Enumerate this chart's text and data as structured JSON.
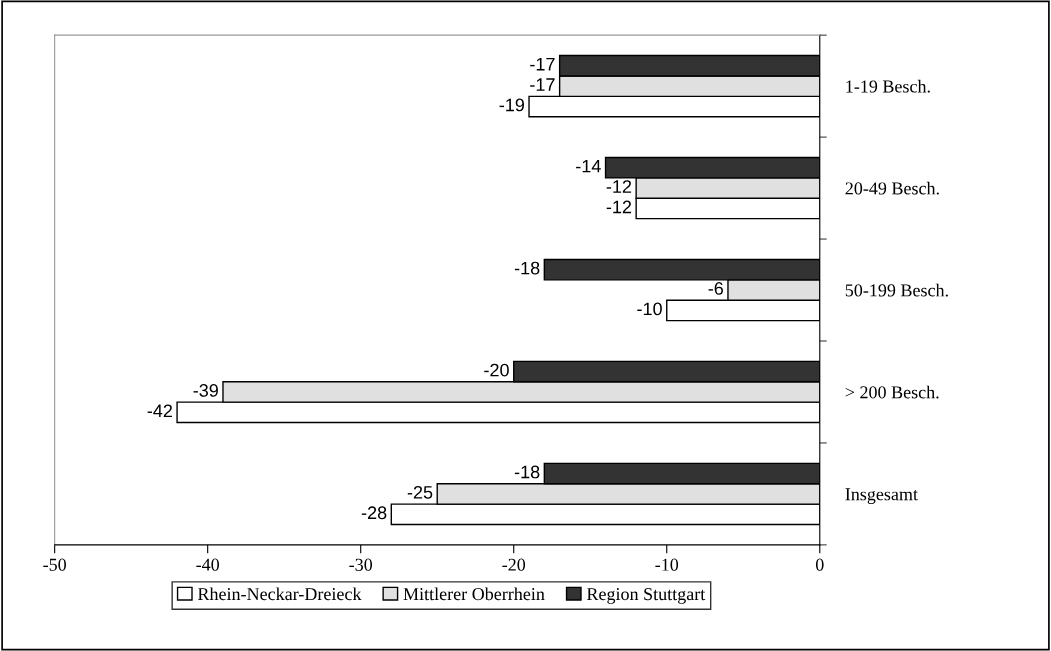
{
  "chart_data": {
    "type": "bar",
    "orientation": "horizontal",
    "categories": [
      "1-19 Besch.",
      "20-49 Besch.",
      "50-199 Besch.",
      "> 200 Besch.",
      "Insgesamt"
    ],
    "series": [
      {
        "name": "Rhein-Neckar-Dreieck",
        "color": "#ffffff",
        "values": [
          -19,
          -12,
          -10,
          -42,
          -28
        ]
      },
      {
        "name": "Mittlerer Oberrhein",
        "color": "#e0e0e0",
        "values": [
          -17,
          -12,
          -6,
          -39,
          -25
        ]
      },
      {
        "name": "Region Stuttgart",
        "color": "#333333",
        "values": [
          -17,
          -14,
          -18,
          -20,
          -18
        ]
      }
    ],
    "xlim": [
      -50,
      0
    ],
    "xticks": [
      -50,
      -40,
      -30,
      -20,
      -10,
      0
    ],
    "data_labels": true,
    "grid": false,
    "legend": "bottom"
  }
}
